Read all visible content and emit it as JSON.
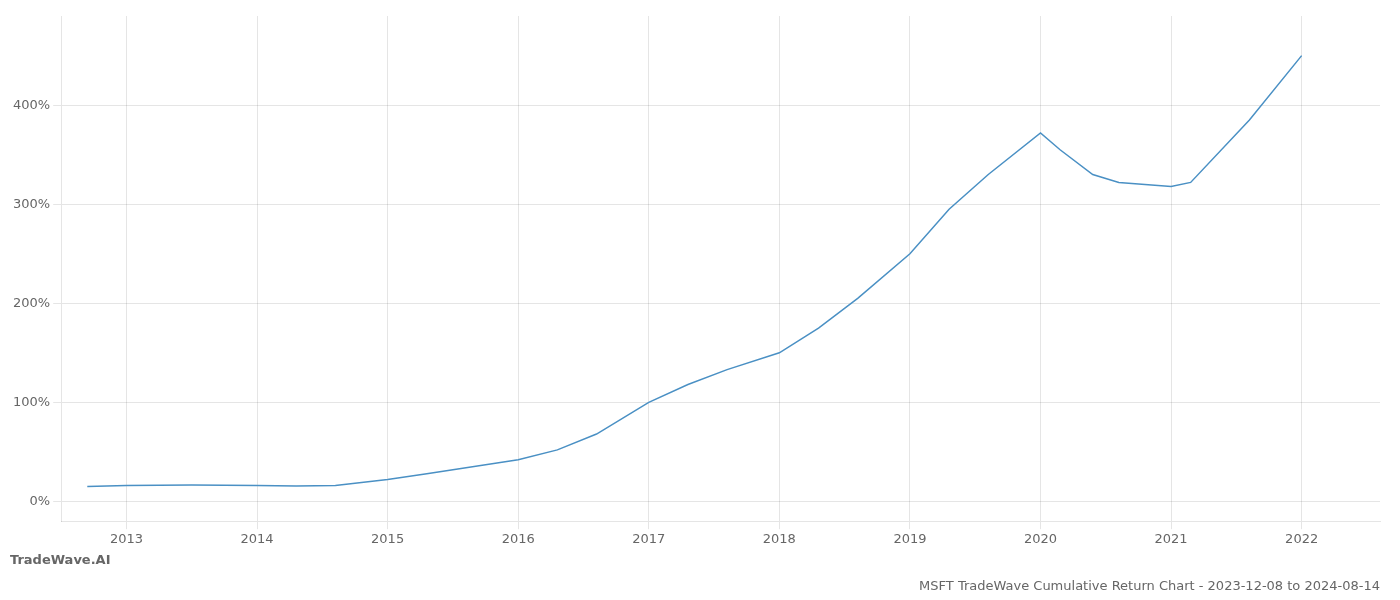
{
  "chart_data": {
    "type": "line",
    "title": "MSFT TradeWave Cumulative Return Chart - 2023-12-08 to 2024-08-14",
    "annotations": [
      "TradeWave.AI"
    ],
    "x": [
      2012.7,
      2013.0,
      2013.5,
      2014.0,
      2014.3,
      2014.6,
      2015.0,
      2015.3,
      2015.6,
      2016.0,
      2016.3,
      2016.6,
      2017.0,
      2017.3,
      2017.6,
      2018.0,
      2018.3,
      2018.6,
      2019.0,
      2019.3,
      2019.6,
      2020.0,
      2020.15,
      2020.4,
      2020.6,
      2021.0,
      2021.15,
      2021.6,
      2022.0
    ],
    "values": [
      15,
      16,
      16.5,
      16,
      15.5,
      16,
      22,
      28,
      34,
      42,
      52,
      68,
      100,
      118,
      133,
      150,
      175,
      205,
      250,
      295,
      330,
      372,
      355,
      330,
      322,
      318,
      322,
      385,
      450
    ],
    "color": "#4a90c4",
    "xlim": [
      2012.5,
      2022.6
    ],
    "xticks": [
      2013,
      2014,
      2015,
      2016,
      2017,
      2018,
      2019,
      2020,
      2021,
      2022
    ],
    "ylim": [
      -20,
      490
    ],
    "yticks": [
      {
        "value": 0,
        "label": "0%"
      },
      {
        "value": 100,
        "label": "100%"
      },
      {
        "value": 200,
        "label": "200%"
      },
      {
        "value": 300,
        "label": "300%"
      },
      {
        "value": 400,
        "label": "400%"
      }
    ],
    "grid": true
  }
}
